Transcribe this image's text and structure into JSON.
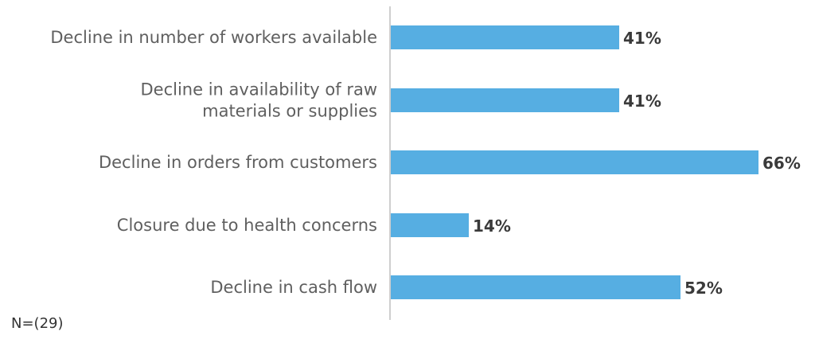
{
  "chart_data": {
    "type": "bar",
    "orientation": "horizontal",
    "categories": [
      [
        "Decline in number of workers available"
      ],
      [
        "Decline in availability of raw",
        "materials or supplies"
      ],
      [
        "Decline in orders from customers"
      ],
      [
        "Closure due to health concerns"
      ],
      [
        "Decline in cash flow"
      ]
    ],
    "values": [
      41,
      41,
      66,
      14,
      52
    ],
    "value_labels": [
      "41%",
      "41%",
      "66%",
      "14%",
      "52%"
    ],
    "xlim": [
      0,
      70
    ],
    "bar_color": "#56aee2",
    "axis_color": "#cfcfcf",
    "grid": false,
    "legend": "none",
    "title": "",
    "xlabel": "",
    "ylabel": ""
  },
  "footnote": "N=(29)"
}
